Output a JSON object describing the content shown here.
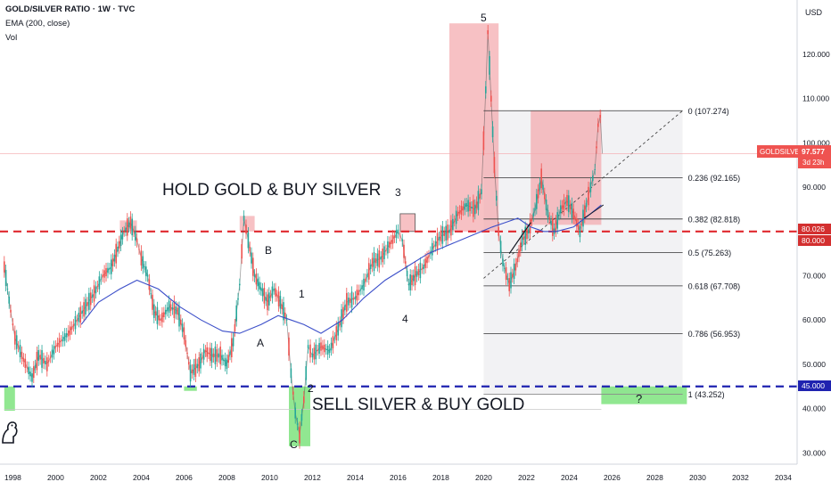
{
  "header": {
    "symbol_line": "GOLD/SILVER RATIO · 1W · TVC",
    "ema_label": "EMA (200, close)",
    "volume_label": "Vol"
  },
  "price_axis": {
    "currency": "USD",
    "ticks": [
      "120.000",
      "110.000",
      "100.000",
      "90.000",
      "80.000",
      "70.000",
      "60.000",
      "50.000",
      "40.000",
      "30.000"
    ]
  },
  "price_labels": {
    "symbol_tag": "GOLDSILVER",
    "last_price": "97.577",
    "countdown": "3d 23h",
    "red_line_value": "80.026",
    "red_level": "80.000",
    "blue_level": "45.000"
  },
  "colors": {
    "red_dashed": "#e0282e",
    "blue_dashed": "#1f23b0",
    "ema": "#3c4fc9",
    "candle_up": "#26a69a",
    "candle_down": "#ef5350",
    "red_zone": "#f4a6ab",
    "green_zone": "#7ee37e"
  },
  "annotations": {
    "hold": "HOLD GOLD & BUY SILVER",
    "sell": "SELL SILVER & BUY GOLD",
    "question": "?",
    "waves": [
      "5",
      "3",
      "4",
      "B",
      "A",
      "1",
      "2",
      "C"
    ]
  },
  "chart_data": {
    "type": "line",
    "title": "GOLD/SILVER RATIO · 1W · TVC",
    "xlim": [
      1997.4,
      2035.2
    ],
    "ylim": [
      26.5,
      130.3
    ],
    "x_ticks": [
      "1998",
      "2000",
      "2002",
      "2004",
      "2006",
      "2008",
      "2010",
      "2012",
      "2014",
      "2016",
      "2018",
      "2020",
      "2022",
      "2024",
      "2026",
      "2028",
      "2030",
      "2032",
      "2034"
    ],
    "horizontal_lines": [
      {
        "value": 80.0,
        "style": "dashed",
        "color": "red"
      },
      {
        "value": 45.0,
        "style": "dashed",
        "color": "blue"
      }
    ],
    "fibonacci": [
      {
        "level": "0",
        "value": 107.274
      },
      {
        "level": "0.236",
        "value": 92.165
      },
      {
        "level": "0.382",
        "value": 82.818
      },
      {
        "level": "0.5",
        "value": 75.263
      },
      {
        "level": "0.618",
        "value": 67.708
      },
      {
        "level": "0.786",
        "value": 56.953
      },
      {
        "level": "1",
        "value": 43.252
      }
    ],
    "fib_labels": [
      "0 (107.274)",
      "0.236 (92.165)",
      "0.382 (82.818)",
      "0.5 (75.263)",
      "0.618 (67.708)",
      "0.786 (56.953)",
      "1 (43.252)"
    ],
    "series": [
      {
        "points": [
          [
            1997.6,
            72
          ],
          [
            1997.9,
            62
          ],
          [
            1998.1,
            56
          ],
          [
            1998.5,
            51
          ],
          [
            1998.9,
            47
          ],
          [
            1999.2,
            52
          ],
          [
            1999.6,
            50
          ],
          [
            2000.0,
            54
          ],
          [
            2000.6,
            57
          ],
          [
            2001.0,
            60
          ],
          [
            2001.4,
            63
          ],
          [
            2001.8,
            66
          ],
          [
            2002.2,
            70
          ],
          [
            2002.6,
            72
          ],
          [
            2002.9,
            76
          ],
          [
            2003.2,
            80
          ],
          [
            2003.5,
            82
          ],
          [
            2003.8,
            78
          ],
          [
            2004.0,
            74
          ],
          [
            2004.3,
            70
          ],
          [
            2004.6,
            62
          ],
          [
            2004.9,
            60
          ],
          [
            2005.3,
            63
          ],
          [
            2005.7,
            62
          ],
          [
            2006.0,
            57
          ],
          [
            2006.3,
            48
          ],
          [
            2006.7,
            50
          ],
          [
            2007.0,
            53
          ],
          [
            2007.3,
            52
          ],
          [
            2007.7,
            52
          ],
          [
            2008.0,
            50
          ],
          [
            2008.3,
            55
          ],
          [
            2008.6,
            68
          ],
          [
            2008.8,
            83
          ],
          [
            2009.0,
            78
          ],
          [
            2009.3,
            70
          ],
          [
            2009.6,
            67
          ],
          [
            2009.9,
            64
          ],
          [
            2010.2,
            67
          ],
          [
            2010.5,
            64
          ],
          [
            2010.8,
            60
          ],
          [
            2011.0,
            48
          ],
          [
            2011.2,
            39
          ],
          [
            2011.4,
            34
          ],
          [
            2011.6,
            42
          ],
          [
            2011.8,
            54
          ],
          [
            2012.0,
            52
          ],
          [
            2012.4,
            54
          ],
          [
            2012.8,
            53
          ],
          [
            2013.2,
            58
          ],
          [
            2013.6,
            64
          ],
          [
            2014.0,
            65
          ],
          [
            2014.4,
            68
          ],
          [
            2014.8,
            73
          ],
          [
            2015.2,
            74
          ],
          [
            2015.6,
            77
          ],
          [
            2016.0,
            80
          ],
          [
            2016.2,
            78
          ],
          [
            2016.5,
            68
          ],
          [
            2016.8,
            70
          ],
          [
            2017.2,
            72
          ],
          [
            2017.6,
            76
          ],
          [
            2018.0,
            79
          ],
          [
            2018.4,
            80
          ],
          [
            2018.8,
            84
          ],
          [
            2019.2,
            86
          ],
          [
            2019.6,
            85
          ],
          [
            2019.9,
            89
          ],
          [
            2020.1,
            112
          ],
          [
            2020.2,
            125
          ],
          [
            2020.35,
            110
          ],
          [
            2020.5,
            95
          ],
          [
            2020.7,
            80
          ],
          [
            2020.9,
            73
          ],
          [
            2021.2,
            68
          ],
          [
            2021.5,
            72
          ],
          [
            2021.8,
            78
          ],
          [
            2022.1,
            80
          ],
          [
            2022.4,
            85
          ],
          [
            2022.7,
            92
          ],
          [
            2023.0,
            84
          ],
          [
            2023.3,
            80
          ],
          [
            2023.6,
            85
          ],
          [
            2023.9,
            87
          ],
          [
            2024.2,
            84
          ],
          [
            2024.5,
            80
          ],
          [
            2024.8,
            86
          ],
          [
            2025.0,
            90
          ],
          [
            2025.2,
            94
          ],
          [
            2025.35,
            104
          ],
          [
            2025.45,
            106
          ],
          [
            2025.55,
            97.6
          ]
        ]
      },
      {
        "name": "EMA (200, close)",
        "points": [
          [
            2001.2,
            59
          ],
          [
            2002.0,
            64
          ],
          [
            2003.0,
            67
          ],
          [
            2003.8,
            69
          ],
          [
            2004.8,
            67
          ],
          [
            2005.8,
            63
          ],
          [
            2006.8,
            60
          ],
          [
            2007.8,
            57.5
          ],
          [
            2008.6,
            57
          ],
          [
            2009.6,
            59
          ],
          [
            2010.4,
            61
          ],
          [
            2011.0,
            60
          ],
          [
            2011.6,
            59
          ],
          [
            2012.4,
            57
          ],
          [
            2013.4,
            60
          ],
          [
            2014.4,
            65
          ],
          [
            2015.4,
            69
          ],
          [
            2016.4,
            72
          ],
          [
            2017.4,
            75
          ],
          [
            2018.4,
            77
          ],
          [
            2019.4,
            79
          ],
          [
            2020.4,
            81
          ],
          [
            2021.0,
            82
          ],
          [
            2021.6,
            83
          ],
          [
            2022.2,
            81
          ],
          [
            2022.8,
            80
          ],
          [
            2023.4,
            80
          ],
          [
            2024.2,
            81
          ],
          [
            2025.0,
            84
          ],
          [
            2025.5,
            86
          ]
        ]
      }
    ],
    "zones": [
      {
        "type": "red",
        "x": [
          2003.0,
          2003.8
        ],
        "y": [
          80.0,
          82.5
        ]
      },
      {
        "type": "red",
        "x": [
          2008.6,
          2009.3
        ],
        "y": [
          80.0,
          83.5
        ]
      },
      {
        "type": "red",
        "x": [
          2016.1,
          2016.8
        ],
        "y": [
          80.0,
          84.0
        ]
      },
      {
        "type": "red",
        "x": [
          2018.4,
          2020.7
        ],
        "y": [
          80.0,
          127.0
        ]
      },
      {
        "type": "red",
        "x": [
          2022.2,
          2025.5
        ],
        "y": [
          81.5,
          107.3
        ]
      },
      {
        "type": "green",
        "x": [
          1997.6,
          1998.1
        ],
        "y": [
          39.5,
          45.0
        ]
      },
      {
        "type": "green",
        "x": [
          2006.0,
          2006.6
        ],
        "y": [
          44.0,
          45.0
        ]
      },
      {
        "type": "green",
        "x": [
          2010.9,
          2011.9
        ],
        "y": [
          31.5,
          45.0
        ]
      },
      {
        "type": "green",
        "x": [
          2025.5,
          2029.5
        ],
        "y": [
          41.0,
          45.0
        ]
      }
    ]
  }
}
